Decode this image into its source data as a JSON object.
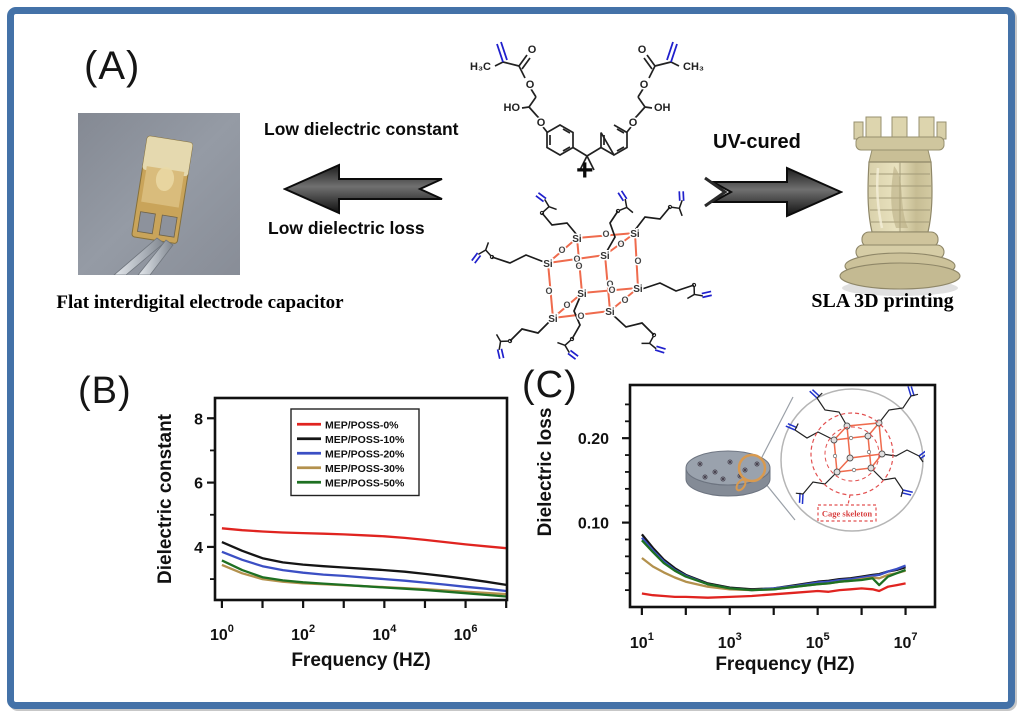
{
  "panel_a": {
    "label": "(A)",
    "capacitor_caption": "Flat interdigital electrode capacitor",
    "low_k_label": "Low dielectric constant",
    "low_loss_label": "Low dielectric loss",
    "uv_label": "UV-cured",
    "sla_caption": "SLA 3D printing",
    "plus": "+",
    "chem_labels": {
      "h3c": "H₃C",
      "ch3": "CH₃",
      "ho": "HO",
      "oh": "OH",
      "o": "O",
      "si": "Si"
    }
  },
  "panel_b": {
    "label": "(B)"
  },
  "panel_c": {
    "label": "(C)",
    "inset_label": "Cage skeleton"
  },
  "colors": {
    "frame_border": "#4472a8",
    "cage_bond": "#ef6b4d",
    "vinyl_bond": "#2020cc",
    "series_red": "#e02420",
    "series_black": "#151515",
    "series_blue": "#3b4fc4",
    "series_tan": "#b3914d",
    "series_green": "#1e7022"
  },
  "chart_data": [
    {
      "id": "dielectric-constant",
      "type": "line",
      "x_scale": "log",
      "xlabel": "Frequency (HZ)",
      "ylabel": "Dielectric constant",
      "x_exponent_base": "10",
      "x_tick_exponents": [
        0,
        1,
        2,
        3,
        4,
        5,
        6,
        7
      ],
      "x_labeled_exponents": [
        0,
        2,
        4,
        6
      ],
      "xlim_log10": [
        -0.17,
        7.02
      ],
      "ylim": [
        2.35,
        8.63
      ],
      "y_major_ticks": [
        4,
        6,
        8
      ],
      "y_major_labels": [
        "4",
        "6",
        "8"
      ],
      "y_minor_ticks": [
        3,
        5,
        7
      ],
      "legend": true,
      "legend_position": "top-right",
      "x_log10": [
        0,
        0.5,
        1,
        1.5,
        2,
        2.5,
        3,
        3.5,
        4,
        4.5,
        5,
        5.5,
        6,
        6.5,
        7
      ],
      "series": [
        {
          "name": "MEP/POSS-0%",
          "color": "#e02420",
          "values": [
            4.58,
            4.52,
            4.48,
            4.45,
            4.43,
            4.41,
            4.39,
            4.36,
            4.33,
            4.28,
            4.22,
            4.15,
            4.08,
            4.02,
            3.96
          ]
        },
        {
          "name": "MEP/POSS-10%",
          "color": "#151515",
          "values": [
            4.15,
            3.88,
            3.65,
            3.52,
            3.45,
            3.4,
            3.36,
            3.32,
            3.28,
            3.23,
            3.16,
            3.09,
            3.01,
            2.92,
            2.82
          ]
        },
        {
          "name": "MEP/POSS-20%",
          "color": "#3b4fc4",
          "values": [
            3.85,
            3.6,
            3.4,
            3.28,
            3.2,
            3.14,
            3.1,
            3.05,
            3.0,
            2.95,
            2.89,
            2.83,
            2.76,
            2.7,
            2.63
          ]
        },
        {
          "name": "MEP/POSS-30%",
          "color": "#b3914d",
          "values": [
            3.44,
            3.18,
            3.0,
            2.92,
            2.87,
            2.84,
            2.81,
            2.78,
            2.75,
            2.72,
            2.69,
            2.65,
            2.61,
            2.57,
            2.53
          ]
        },
        {
          "name": "MEP/POSS-50%",
          "color": "#1e7022",
          "values": [
            3.58,
            3.28,
            3.06,
            2.96,
            2.9,
            2.86,
            2.82,
            2.78,
            2.74,
            2.7,
            2.66,
            2.61,
            2.56,
            2.51,
            2.46
          ]
        }
      ]
    },
    {
      "id": "dielectric-loss",
      "type": "line",
      "x_scale": "log",
      "xlabel": "Frequency (HZ)",
      "ylabel": "Dielectric loss",
      "x_exponent_base": "10",
      "x_tick_exponents": [
        1,
        2,
        3,
        4,
        5,
        6,
        7
      ],
      "x_labeled_exponents": [
        1,
        3,
        5,
        7
      ],
      "xlim_log10": [
        0.73,
        7.67
      ],
      "ylim": [
        0,
        0.263
      ],
      "y_major_ticks": [
        0.1,
        0.2
      ],
      "y_major_labels": [
        "0.10",
        "0.20"
      ],
      "y_minor_ticks": [
        0.02,
        0.04,
        0.06,
        0.08,
        0.12,
        0.14,
        0.16,
        0.18,
        0.22,
        0.24
      ],
      "legend": false,
      "x_log10": [
        1,
        1.25,
        1.5,
        1.75,
        2,
        2.5,
        3,
        3.5,
        4,
        4.5,
        5,
        5.25,
        5.5,
        5.75,
        6,
        6.25,
        6.4,
        6.6,
        6.8,
        7
      ],
      "series": [
        {
          "name": "MEP/POSS-0%",
          "color": "#e02420",
          "values": [
            0.016,
            0.014,
            0.013,
            0.012,
            0.012,
            0.011,
            0.012,
            0.013,
            0.015,
            0.017,
            0.019,
            0.018,
            0.02,
            0.021,
            0.022,
            0.021,
            0.019,
            0.024,
            0.026,
            0.028
          ]
        },
        {
          "name": "MEP/POSS-10%",
          "color": "#151515",
          "values": [
            0.086,
            0.07,
            0.056,
            0.046,
            0.038,
            0.028,
            0.023,
            0.021,
            0.022,
            0.026,
            0.03,
            0.031,
            0.033,
            0.034,
            0.036,
            0.038,
            0.039,
            0.042,
            0.044,
            0.047
          ]
        },
        {
          "name": "MEP/POSS-20%",
          "color": "#3b4fc4",
          "values": [
            0.082,
            0.067,
            0.054,
            0.044,
            0.037,
            0.027,
            0.022,
            0.02,
            0.022,
            0.025,
            0.029,
            0.03,
            0.032,
            0.033,
            0.035,
            0.037,
            0.038,
            0.042,
            0.045,
            0.049
          ]
        },
        {
          "name": "MEP/POSS-30%",
          "color": "#b3914d",
          "values": [
            0.058,
            0.048,
            0.041,
            0.035,
            0.03,
            0.024,
            0.021,
            0.02,
            0.021,
            0.024,
            0.027,
            0.028,
            0.03,
            0.031,
            0.033,
            0.035,
            0.034,
            0.038,
            0.04,
            0.043
          ]
        },
        {
          "name": "MEP/POSS-50%",
          "color": "#1e7022",
          "values": [
            0.079,
            0.065,
            0.052,
            0.043,
            0.036,
            0.027,
            0.022,
            0.02,
            0.021,
            0.024,
            0.027,
            0.028,
            0.03,
            0.031,
            0.032,
            0.034,
            0.026,
            0.036,
            0.04,
            0.044
          ]
        }
      ]
    }
  ]
}
